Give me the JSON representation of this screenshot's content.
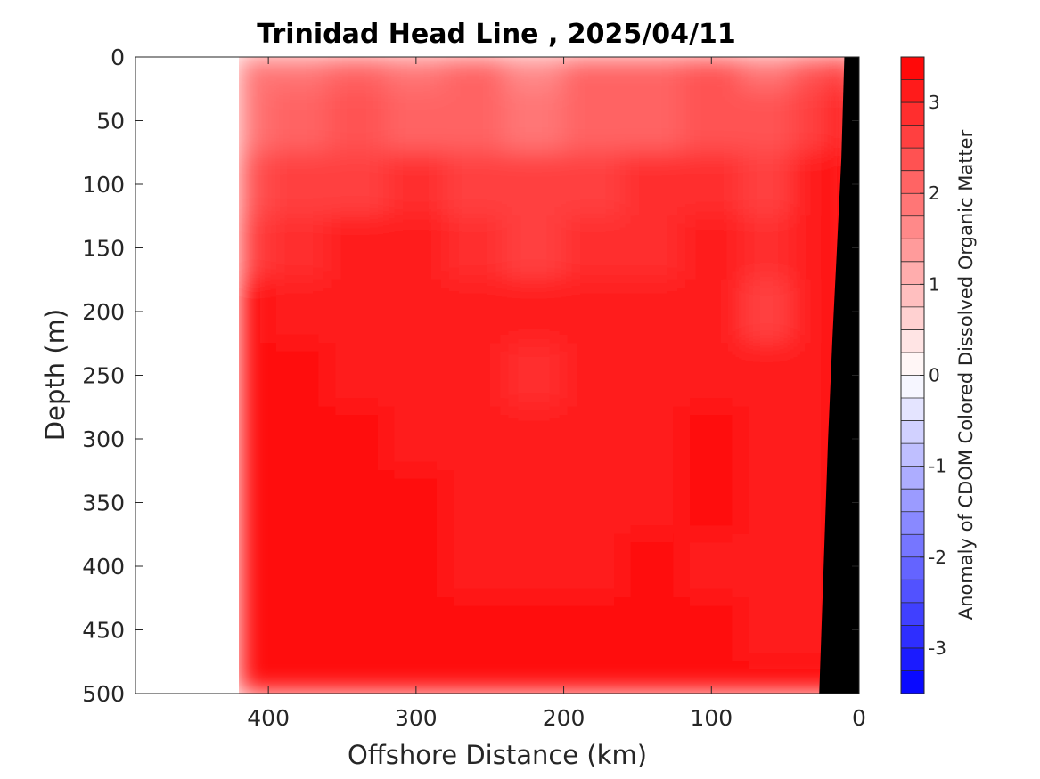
{
  "chart_data": {
    "type": "heatmap",
    "title": "Trinidad Head Line , 2025/04/11",
    "xlabel": "Offshore Distance (km)",
    "ylabel": "Depth (m)",
    "xlim": [
      490,
      0
    ],
    "ylim": [
      0,
      500
    ],
    "x_reversed": true,
    "y_reversed": true,
    "x_ticks": [
      400,
      300,
      200,
      100,
      0
    ],
    "y_ticks": [
      0,
      50,
      100,
      150,
      200,
      250,
      300,
      350,
      400,
      450,
      500
    ],
    "data_extent_km": [
      420,
      0
    ],
    "colorbar": {
      "label": "Anomaly of CDOM Colored Dissolved Organic Matter",
      "range": [
        -3.5,
        3.5
      ],
      "ticks": [
        3,
        2,
        1,
        0,
        -1,
        -2,
        -3
      ],
      "levels": 28,
      "cmap": "blue-white-red"
    },
    "depth_levels": [
      0,
      50,
      100,
      150,
      200,
      250,
      300,
      350,
      400,
      450,
      500
    ],
    "distance_km": [
      420,
      380,
      340,
      300,
      260,
      220,
      180,
      140,
      100,
      60,
      30,
      10
    ],
    "anomaly_grid": [
      [
        1.9,
        1.9,
        2.0,
        1.9,
        2.1,
        1.6,
        2.0,
        2.2,
        2.4,
        1.9,
        2.3,
        2.6
      ],
      [
        1.9,
        2.1,
        2.3,
        2.2,
        2.1,
        1.9,
        2.1,
        2.2,
        2.4,
        2.3,
        2.6,
        3.1
      ],
      [
        2.3,
        2.5,
        2.7,
        2.8,
        2.6,
        2.5,
        2.7,
        2.9,
        2.8,
        2.7,
        3.0,
        3.3
      ],
      [
        2.6,
        2.8,
        3.0,
        3.0,
        2.8,
        2.7,
        2.8,
        2.9,
        3.0,
        2.8,
        3.0,
        3.3
      ],
      [
        3.3,
        3.1,
        3.2,
        3.2,
        3.0,
        3.0,
        3.1,
        3.1,
        3.0,
        2.7,
        3.1,
        3.3
      ],
      [
        3.5,
        3.4,
        3.2,
        3.2,
        3.1,
        2.9,
        3.0,
        3.1,
        3.2,
        3.0,
        3.2,
        3.3
      ],
      [
        3.5,
        3.5,
        3.3,
        3.2,
        3.2,
        3.1,
        3.2,
        3.2,
        3.3,
        3.2,
        3.1,
        3.3
      ],
      [
        3.5,
        3.5,
        3.3,
        3.3,
        3.2,
        3.1,
        3.2,
        3.2,
        3.3,
        3.2,
        3.1,
        3.3
      ],
      [
        3.5,
        3.5,
        3.4,
        3.3,
        3.2,
        3.2,
        3.2,
        3.3,
        3.2,
        3.1,
        3.2,
        3.3
      ],
      [
        3.5,
        3.5,
        3.4,
        3.3,
        3.3,
        3.3,
        3.3,
        3.3,
        3.3,
        3.2,
        3.1,
        3.3
      ],
      [
        3.5,
        3.5,
        3.5,
        3.4,
        3.4,
        3.3,
        3.4,
        3.3,
        3.4,
        3.3,
        3.3,
        3.3
      ]
    ],
    "bathymetry": [
      [
        10,
        0
      ],
      [
        12,
        80
      ],
      [
        15,
        150
      ],
      [
        18,
        220
      ],
      [
        21,
        300
      ],
      [
        24,
        400
      ],
      [
        27,
        500
      ]
    ]
  }
}
